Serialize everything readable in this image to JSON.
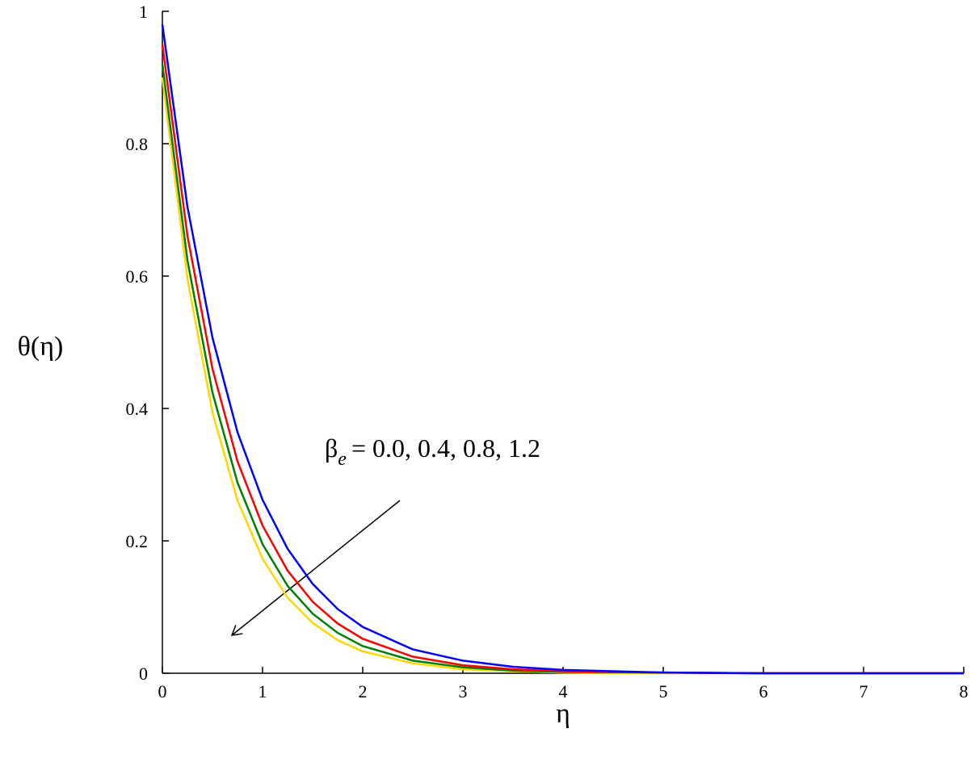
{
  "chart_data": {
    "type": "line",
    "x_label": "η",
    "y_label": "θ(η)",
    "annotation": {
      "symbol": "β",
      "subscript": "e",
      "text": "= 0.0, 0.4, 0.8, 1.2"
    },
    "x": [
      0,
      0.25,
      0.5,
      0.75,
      1,
      1.25,
      1.5,
      1.75,
      2,
      2.5,
      3,
      3.5,
      4,
      5,
      6,
      8
    ],
    "series": [
      {
        "color": "#0000ff",
        "values": [
          0.98,
          0.705,
          0.507,
          0.364,
          0.262,
          0.188,
          0.135,
          0.097,
          0.07,
          0.036,
          0.019,
          0.0097,
          0.005,
          0.001,
          0,
          0
        ]
      },
      {
        "color": "#ff0000",
        "values": [
          0.95,
          0.661,
          0.46,
          0.32,
          0.223,
          0.155,
          0.108,
          0.075,
          0.052,
          0.025,
          0.012,
          0.006,
          0.003,
          0.001,
          0,
          0
        ]
      },
      {
        "color": "#008000",
        "values": [
          0.92,
          0.624,
          0.424,
          0.288,
          0.195,
          0.132,
          0.09,
          0.061,
          0.041,
          0.019,
          0.009,
          0.004,
          0.002,
          0.001,
          0,
          0
        ]
      },
      {
        "color": "#ffd700",
        "values": [
          0.9,
          0.596,
          0.394,
          0.261,
          0.173,
          0.114,
          0.076,
          0.05,
          0.033,
          0.015,
          0.006,
          0.003,
          0.001,
          0,
          0,
          0
        ]
      }
    ],
    "xlim": [
      0,
      8
    ],
    "ylim": [
      0,
      1
    ],
    "xticks": [
      0,
      1,
      2,
      3,
      4,
      5,
      6,
      7,
      8
    ],
    "yticks": [
      0,
      0.2,
      0.4,
      0.6,
      0.8,
      1
    ]
  }
}
